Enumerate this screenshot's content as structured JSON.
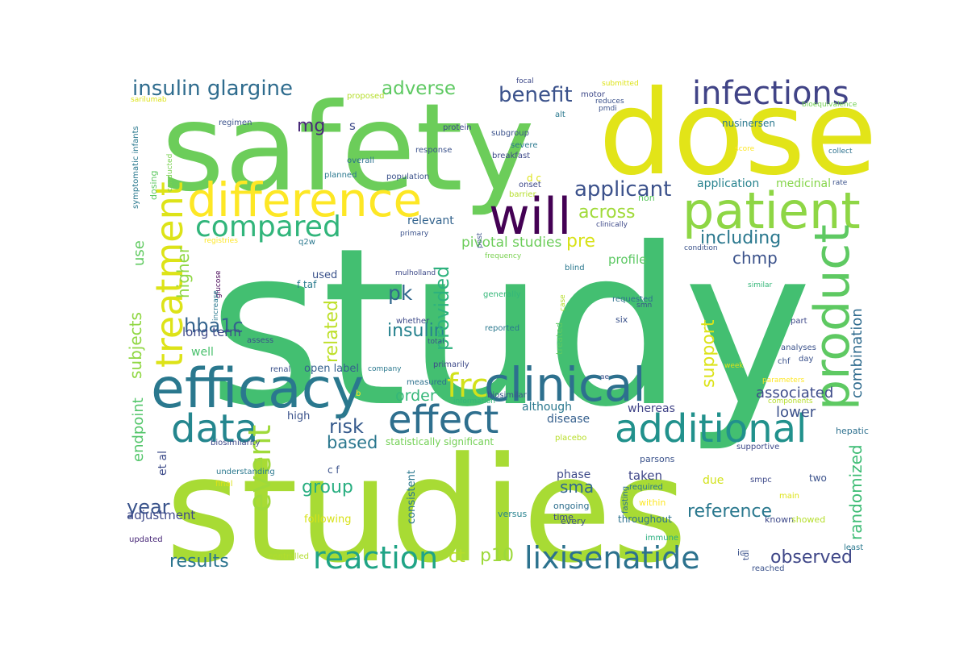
{
  "words": [
    {
      "text": "study",
      "color": "#43bf71"
    },
    {
      "text": "studies",
      "color": "#a8db34"
    },
    {
      "text": "safety",
      "color": "#6ccd5a"
    },
    {
      "text": "dose",
      "color": "#e2e418"
    },
    {
      "text": "difference",
      "color": "#fde725"
    },
    {
      "text": "efficacy",
      "color": "#2a788e"
    },
    {
      "text": "patient",
      "color": "#8ed645"
    },
    {
      "text": "will",
      "color": "#440154"
    },
    {
      "text": "clinical",
      "color": "#2d708e"
    },
    {
      "text": "data",
      "color": "#24868e"
    },
    {
      "text": "additional",
      "color": "#21918c"
    },
    {
      "text": "effect",
      "color": "#2e6f8e"
    },
    {
      "text": "product",
      "color": "#5ec962"
    },
    {
      "text": "treatment",
      "color": "#dde318"
    },
    {
      "text": "infections",
      "color": "#414487"
    },
    {
      "text": "compared",
      "color": "#31b57b"
    },
    {
      "text": "reaction",
      "color": "#20a486"
    },
    {
      "text": "lixisenatide",
      "color": "#2c728e"
    },
    {
      "text": "insulin glargine",
      "color": "#2f6c8e"
    },
    {
      "text": "frc",
      "color": "#d2e21b"
    },
    {
      "text": "event",
      "color": "#9fda3a"
    },
    {
      "text": "applicant",
      "color": "#3b518b"
    },
    {
      "text": "benefit",
      "color": "#3b528b"
    },
    {
      "text": "adverse",
      "color": "#5ec962"
    },
    {
      "text": "mg",
      "color": "#482878"
    },
    {
      "text": "s",
      "color": "#3e4a89"
    },
    {
      "text": "pk",
      "color": "#31688e"
    },
    {
      "text": "insulin",
      "color": "#26828e"
    },
    {
      "text": "including",
      "color": "#2a788e"
    },
    {
      "text": "chmp",
      "color": "#3b528b"
    },
    {
      "text": "across",
      "color": "#a0da39"
    },
    {
      "text": "pre",
      "color": "#d8e219"
    },
    {
      "text": "provided",
      "color": "#2db27d"
    },
    {
      "text": "related",
      "color": "#bddf26"
    },
    {
      "text": "hba1c",
      "color": "#33638d"
    },
    {
      "text": "long term",
      "color": "#3e4a89"
    },
    {
      "text": "risk",
      "color": "#375b8d"
    },
    {
      "text": "based",
      "color": "#2a778e"
    },
    {
      "text": "order",
      "color": "#35b779"
    },
    {
      "text": "group",
      "color": "#28ae80"
    },
    {
      "text": "sma",
      "color": "#31688e"
    },
    {
      "text": "reference",
      "color": "#2a788e"
    },
    {
      "text": "observed",
      "color": "#3f4788"
    },
    {
      "text": "results",
      "color": "#2b748e"
    },
    {
      "text": "year",
      "color": "#3a548c"
    },
    {
      "text": "adjustment",
      "color": "#3e4989"
    },
    {
      "text": "p10",
      "color": "#9dd93b"
    },
    {
      "text": "ct",
      "color": "#b5de2b"
    },
    {
      "text": "support",
      "color": "#dce319"
    },
    {
      "text": "combination",
      "color": "#2f6b8e"
    },
    {
      "text": "randomized",
      "color": "#3dbc74"
    },
    {
      "text": "associated",
      "color": "#3e4c8a"
    },
    {
      "text": "lower",
      "color": "#3b518b"
    },
    {
      "text": "use",
      "color": "#60ca60"
    },
    {
      "text": "higher",
      "color": "#8fd744"
    },
    {
      "text": "subjects",
      "color": "#90d743"
    },
    {
      "text": "endpoint",
      "color": "#52c569"
    },
    {
      "text": "et al",
      "color": "#3e4c8a"
    },
    {
      "text": "profile",
      "color": "#5cc863"
    },
    {
      "text": "pivotal studies",
      "color": "#6ccd5a"
    },
    {
      "text": "relevant",
      "color": "#33638d"
    },
    {
      "text": "application",
      "color": "#26828e"
    },
    {
      "text": "medicinal",
      "color": "#85d54a"
    },
    {
      "text": "well",
      "color": "#4ac16d"
    },
    {
      "text": "used",
      "color": "#3b528b"
    },
    {
      "text": "high",
      "color": "#3b528b"
    },
    {
      "text": "phase",
      "color": "#3e4a89"
    },
    {
      "text": "taken",
      "color": "#3f4788"
    },
    {
      "text": "due",
      "color": "#d2e21b"
    },
    {
      "text": "disease",
      "color": "#355f8d"
    },
    {
      "text": "whereas",
      "color": "#404387"
    },
    {
      "text": "although",
      "color": "#2a788e"
    },
    {
      "text": "open label",
      "color": "#35608d"
    },
    {
      "text": "statistically significant",
      "color": "#73d055"
    },
    {
      "text": "consistent",
      "color": "#2a778e"
    },
    {
      "text": "following",
      "color": "#d8e219"
    },
    {
      "text": "f taf",
      "color": "#297b8e"
    },
    {
      "text": "c f",
      "color": "#3b528b"
    },
    {
      "text": "versus",
      "color": "#26828e"
    },
    {
      "text": "ongoing",
      "color": "#2e6f8e"
    },
    {
      "text": "throughout",
      "color": "#2d718e"
    },
    {
      "text": "time",
      "color": "#3e4a89"
    },
    {
      "text": "every",
      "color": "#3b528b"
    },
    {
      "text": "two",
      "color": "#3b528b"
    },
    {
      "text": "known",
      "color": "#3e4989"
    },
    {
      "text": "showed",
      "color": "#b5de2b"
    },
    {
      "text": "main",
      "color": "#dde318"
    },
    {
      "text": "smpc",
      "color": "#3e4989"
    },
    {
      "text": "parsons",
      "color": "#3b528b"
    },
    {
      "text": "required",
      "color": "#2a788e"
    },
    {
      "text": "within",
      "color": "#fde725"
    },
    {
      "text": "supportive",
      "color": "#3e4989"
    },
    {
      "text": "hepatic",
      "color": "#2d708e"
    },
    {
      "text": "immune",
      "color": "#29af7f"
    },
    {
      "text": "least",
      "color": "#2a788e"
    },
    {
      "text": "reached",
      "color": "#3b528b"
    },
    {
      "text": "tdi",
      "color": "#3b528b"
    },
    {
      "text": "ic",
      "color": "#3b528b"
    },
    {
      "text": "controlled",
      "color": "#b2dd2d"
    },
    {
      "text": "updated",
      "color": "#482878"
    },
    {
      "text": "final",
      "color": "#dde318"
    },
    {
      "text": "understanding",
      "color": "#2a788e"
    },
    {
      "text": "biosimilarity",
      "color": "#3e4989"
    },
    {
      "text": "placebo",
      "color": "#b8de29"
    },
    {
      "text": "fasting",
      "color": "#2d718e"
    },
    {
      "text": "biosimilar",
      "color": "#3b528b"
    },
    {
      "text": "information",
      "color": "#35b779"
    },
    {
      "text": "measured",
      "color": "#2d718e"
    },
    {
      "text": "company",
      "color": "#2a788e"
    },
    {
      "text": "renal",
      "color": "#3b528b"
    },
    {
      "text": "primarily",
      "color": "#3e4a89"
    },
    {
      "text": "total",
      "color": "#3b528b"
    },
    {
      "text": "whether",
      "color": "#3e4a89"
    },
    {
      "text": "assess",
      "color": "#3b528b"
    },
    {
      "text": "reported",
      "color": "#2a788e"
    },
    {
      "text": "treated",
      "color": "#5ec962"
    },
    {
      "text": "six",
      "color": "#3b528b"
    },
    {
      "text": "requested",
      "color": "#2d718e"
    },
    {
      "text": "smn",
      "color": "#3b528b"
    },
    {
      "text": "blind",
      "color": "#2a788e"
    },
    {
      "text": "case",
      "color": "#b5de2b"
    },
    {
      "text": "generally",
      "color": "#35b779"
    },
    {
      "text": "mulholland",
      "color": "#3e4a89"
    },
    {
      "text": "frequency",
      "color": "#7ad151"
    },
    {
      "text": "primary",
      "color": "#3b528b"
    },
    {
      "text": "post",
      "color": "#3b528b"
    },
    {
      "text": "clinically",
      "color": "#3e4a89"
    },
    {
      "text": "condition",
      "color": "#3b528b"
    },
    {
      "text": "similar",
      "color": "#35b779"
    },
    {
      "text": "part",
      "color": "#3e4989"
    },
    {
      "text": "analyses",
      "color": "#3b528b"
    },
    {
      "text": "day",
      "color": "#3b528b"
    },
    {
      "text": "chf",
      "color": "#3b528b"
    },
    {
      "text": "week",
      "color": "#dde318"
    },
    {
      "text": "parameters",
      "color": "#fde725"
    },
    {
      "text": "components",
      "color": "#b5de2b"
    },
    {
      "text": "q2w",
      "color": "#2a788e"
    },
    {
      "text": "registries",
      "color": "#fde725"
    },
    {
      "text": "glucose",
      "color": "#440154"
    },
    {
      "text": "increase",
      "color": "#2a788e"
    },
    {
      "text": "non",
      "color": "#5ec962"
    },
    {
      "text": "d c",
      "color": "#dde318"
    },
    {
      "text": "onset",
      "color": "#3e4989"
    },
    {
      "text": "barrier",
      "color": "#b5de2b"
    },
    {
      "text": "population",
      "color": "#3b528b"
    },
    {
      "text": "planned",
      "color": "#2a788e"
    },
    {
      "text": "overall",
      "color": "#2d718e"
    },
    {
      "text": "response",
      "color": "#3b528b"
    },
    {
      "text": "breakfast",
      "color": "#3e4a89"
    },
    {
      "text": "severe",
      "color": "#2a788e"
    },
    {
      "text": "subgroup",
      "color": "#3b528b"
    },
    {
      "text": "protein",
      "color": "#3e4989"
    },
    {
      "text": "dosing",
      "color": "#5ec962"
    },
    {
      "text": "conducted",
      "color": "#7ad151"
    },
    {
      "text": "symptomatic infants",
      "color": "#2a788e"
    },
    {
      "text": "regimen",
      "color": "#3b528b"
    },
    {
      "text": "sarilumab",
      "color": "#dde318"
    },
    {
      "text": "proposed",
      "color": "#b5de2b"
    },
    {
      "text": "focal",
      "color": "#3e4989"
    },
    {
      "text": "motor",
      "color": "#3e4989"
    },
    {
      "text": "alt",
      "color": "#2a788e"
    },
    {
      "text": "reduces",
      "color": "#3b528b"
    },
    {
      "text": "pmdi",
      "color": "#3b528b"
    },
    {
      "text": "submitted",
      "color": "#dde318"
    },
    {
      "text": "nusinersen",
      "color": "#2a788e"
    },
    {
      "text": "bioequivalence",
      "color": "#73d055"
    },
    {
      "text": "collect",
      "color": "#2d718e"
    },
    {
      "text": "score",
      "color": "#fde725"
    },
    {
      "text": "rate",
      "color": "#3b528b"
    },
    {
      "text": "ae",
      "color": "#3b528b"
    },
    {
      "text": "b",
      "color": "#fde725"
    }
  ]
}
